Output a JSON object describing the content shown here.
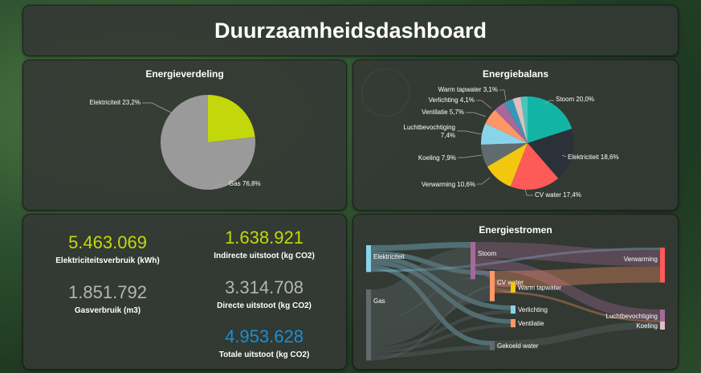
{
  "header": {
    "title": "Duurzaamheidsdashboard"
  },
  "colors": {
    "lime": "#c3d80a",
    "grey": "#9a9a9a",
    "blue": "#1a8fd6"
  },
  "chart_data": [
    {
      "type": "pie",
      "title": "Energieverdeling",
      "slices": [
        {
          "label": "Elektriciteit 23,2%",
          "value": 23.2,
          "color": "#c3d80a"
        },
        {
          "label": "Gas 76,8%",
          "value": 76.8,
          "color": "#9a9a9a"
        }
      ]
    },
    {
      "type": "pie",
      "title": "Energiebalans",
      "slices": [
        {
          "label": "Stoom 20,0%",
          "value": 20.0,
          "color": "#12b5a5"
        },
        {
          "label": "Elektriciteit 18,6%",
          "value": 18.6,
          "color": "#2b3138"
        },
        {
          "label": "CV water 17,4%",
          "value": 17.4,
          "color": "#fd5a58"
        },
        {
          "label": "Verwarming 10,6%",
          "value": 10.6,
          "color": "#f2c80f"
        },
        {
          "label": "Koeling 7,9%",
          "value": 7.9,
          "color": "#5f6b6d"
        },
        {
          "label": "Luchtbevochtiging 7,4%",
          "value": 7.4,
          "color": "#8ad4eb"
        },
        {
          "label": "Ventilatie 5,7%",
          "value": 5.7,
          "color": "#fe9666"
        },
        {
          "label": "Verlichting 4,1%",
          "value": 4.1,
          "color": "#a66999"
        },
        {
          "label": "Warm tapwater 3,1%",
          "value": 3.1,
          "color": "#3599b8"
        },
        {
          "label": "",
          "value": 2.8,
          "color": "#dfbfbf"
        },
        {
          "label": "",
          "value": 2.4,
          "color": "#4ac5bb"
        }
      ]
    },
    {
      "type": "sankey",
      "title": "Energiestromen",
      "nodes": [
        {
          "id": "Elektriciteit",
          "label": "Elektriciteit",
          "color": "#8ad4eb"
        },
        {
          "id": "Gas",
          "label": "Gas",
          "color": "#5f6b6d"
        },
        {
          "id": "Stoom",
          "label": "Stoom",
          "color": "#a66999"
        },
        {
          "id": "CV water",
          "label": "CV water",
          "color": "#fe9666"
        },
        {
          "id": "Verlichting",
          "label": "Verlichting",
          "color": "#8ad4eb"
        },
        {
          "id": "Ventilatie",
          "label": "Ventilatie",
          "color": "#fe9666"
        },
        {
          "id": "Gekoeld water",
          "label": "Gekoeld water",
          "color": "#5f6b6d"
        },
        {
          "id": "Verwarming",
          "label": "Verwarming",
          "color": "#fd5a58"
        },
        {
          "id": "Warm tapwater",
          "label": "Warm tapwater",
          "color": "#f2c80f"
        },
        {
          "id": "Luchtbevochtiging",
          "label": "Luchtbevochtiging",
          "color": "#a66999"
        },
        {
          "id": "Koeling",
          "label": "Koeling",
          "color": "#dfbfbf"
        }
      ],
      "links": [
        {
          "source": "Elektriciteit",
          "target": "Stoom",
          "value": 5
        },
        {
          "source": "Elektriciteit",
          "target": "CV water",
          "value": 4
        },
        {
          "source": "Elektriciteit",
          "target": "Verlichting",
          "value": 4
        },
        {
          "source": "Elektriciteit",
          "target": "Ventilatie",
          "value": 4
        },
        {
          "source": "Elektriciteit",
          "target": "Gekoeld water",
          "value": 4
        },
        {
          "source": "Elektriciteit",
          "target": "Verwarming",
          "value": 2
        },
        {
          "source": "Gas",
          "target": "Stoom",
          "value": 27
        },
        {
          "source": "Gas",
          "target": "CV water",
          "value": 22
        },
        {
          "source": "Gas",
          "target": "Verlichting",
          "value": 3
        },
        {
          "source": "Gas",
          "target": "Ventilatie",
          "value": 3
        },
        {
          "source": "Gas",
          "target": "Gekoeld water",
          "value": 4
        },
        {
          "source": "Gas",
          "target": "Warm tapwater",
          "value": 2
        },
        {
          "source": "Stoom",
          "target": "Verwarming",
          "value": 14
        },
        {
          "source": "Stoom",
          "target": "Luchtbevochtiging",
          "value": 9
        },
        {
          "source": "Stoom",
          "target": "Warm tapwater",
          "value": 4
        },
        {
          "source": "CV water",
          "target": "Verwarming",
          "value": 14
        },
        {
          "source": "CV water",
          "target": "Warm tapwater",
          "value": 3
        },
        {
          "source": "CV water",
          "target": "Luchtbevochtiging",
          "value": 2
        },
        {
          "source": "Gekoeld water",
          "target": "Koeling",
          "value": 6
        }
      ]
    }
  ],
  "kpis": [
    {
      "value": "5.463.069",
      "label": "Elektriciteitsverbruik (kWh)",
      "color": "#c3d80a"
    },
    {
      "value": "1.638.921",
      "label": "Indirecte uitstoot (kg CO2)",
      "color": "#c3d80a"
    },
    {
      "value": "1.851.792",
      "label": "Gasverbruik (m3)",
      "color": "#b5b5b5"
    },
    {
      "value": "3.314.708",
      "label": "Directe uitstoot (kg CO2)",
      "color": "#b5b5b5"
    },
    {
      "value": "4.953.628",
      "label": "Totale uitstoot (kg CO2)",
      "color": "#1a8fd6"
    }
  ]
}
